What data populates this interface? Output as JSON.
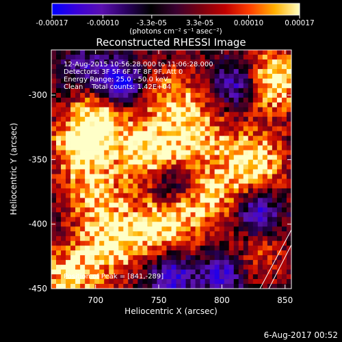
{
  "colorbar": {
    "tick_labels": [
      "-0.00017",
      "-0.00010",
      "-3.3e-05",
      "3.3e-05",
      "0.00010",
      "0.00017"
    ],
    "tick_values": [
      -0.00017,
      -0.0001,
      -3.3e-05,
      3.3e-05,
      0.0001,
      0.00017
    ],
    "range": [
      -0.00017,
      0.00017
    ],
    "unit_label": "(photons cm⁻² s⁻¹ asec⁻²)",
    "colors": [
      "#0000ff",
      "#3a00d8",
      "#5a10b0",
      "#2a0060",
      "#000000",
      "#3a0030",
      "#7a0010",
      "#c00000",
      "#ff4000",
      "#ffb000",
      "#ffffc0"
    ]
  },
  "chart_data": {
    "type": "heatmap",
    "title": "Reconstructed RHESSI Image",
    "xlabel": "Heliocentric X (arcsec)",
    "ylabel": "Heliocentric Y (arcsec)",
    "xlim": [
      665,
      855
    ],
    "ylim": [
      -450,
      -265
    ],
    "xticks": [
      700,
      750,
      800,
      850
    ],
    "yticks": [
      -300,
      -350,
      -400,
      -450
    ],
    "grid": false,
    "annotations": [
      "12-Aug-2015 10:56:28.000 to 11:06:28.000",
      "Detectors: 3F 5F 6F 7F 8F 9F, Att 0",
      "Energy Range: 25.0 - 50.0 keV",
      "Clean    Total counts: 1.42E+04"
    ],
    "peak_label": "Position of Peak = [841,-289]",
    "peak": [
      841,
      -289
    ],
    "hotspots": [
      {
        "x": 841,
        "y": -289,
        "amp": 1.0
      },
      {
        "x": 825,
        "y": -352,
        "amp": 0.95
      },
      {
        "x": 742,
        "y": -345,
        "amp": 0.9
      },
      {
        "x": 688,
        "y": -340,
        "amp": 0.88
      },
      {
        "x": 705,
        "y": -315,
        "amp": 0.75
      },
      {
        "x": 760,
        "y": -300,
        "amp": 0.6
      },
      {
        "x": 755,
        "y": -400,
        "amp": 0.9
      },
      {
        "x": 715,
        "y": -415,
        "amp": 0.8
      },
      {
        "x": 680,
        "y": -440,
        "amp": 0.85
      },
      {
        "x": 790,
        "y": -380,
        "amp": 0.7
      },
      {
        "x": 830,
        "y": -420,
        "amp": 0.45
      },
      {
        "x": 780,
        "y": -330,
        "amp": 0.7
      },
      {
        "x": 700,
        "y": -380,
        "amp": 0.65
      }
    ],
    "coldspots": [
      {
        "x": 720,
        "y": -293,
        "amp": 1.0
      },
      {
        "x": 760,
        "y": -440,
        "amp": 0.8
      },
      {
        "x": 812,
        "y": -292,
        "amp": 0.7
      },
      {
        "x": 828,
        "y": -392,
        "amp": 0.85
      },
      {
        "x": 800,
        "y": -440,
        "amp": 0.7
      },
      {
        "x": 692,
        "y": -280,
        "amp": 0.5
      },
      {
        "x": 760,
        "y": -370,
        "amp": 0.55
      }
    ]
  },
  "timestamp": "6-Aug-2017 00:52"
}
